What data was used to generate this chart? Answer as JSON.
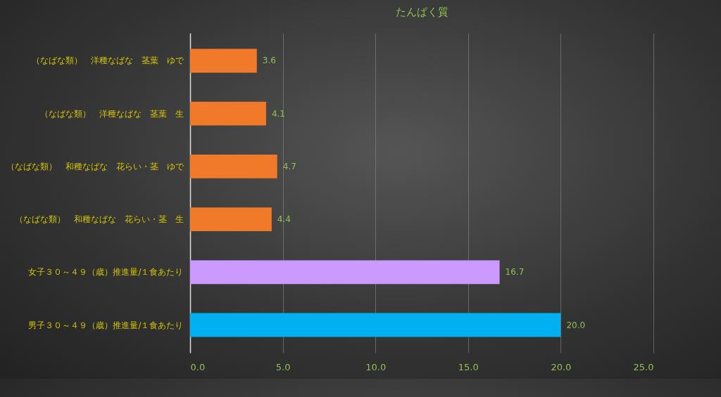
{
  "chart_data": {
    "type": "bar",
    "orientation": "horizontal",
    "title": "たんぱく質",
    "categories": [
      "（なばな類）　洋種なばな　茎葉　ゆで",
      "（なばな類）　洋種なばな　茎葉　生",
      "（なばな類）　和種なばな　花らい・茎　ゆで",
      "（なばな類）　和種なばな　花らい・茎　生",
      "女子３０～４９（歳）推進量/１食あたり",
      "男子３０～４９（歳）推進量/１食あたり"
    ],
    "values": [
      3.6,
      4.1,
      4.7,
      4.4,
      16.7,
      20.0
    ],
    "colors": [
      "#f07a2a",
      "#f07a2a",
      "#f07a2a",
      "#f07a2a",
      "#cc99ff",
      "#00b0f0"
    ],
    "data_labels": true,
    "value_labels": [
      "3.6",
      "4.1",
      "4.7",
      "4.4",
      "16.7",
      "20.0"
    ],
    "xlim": [
      0,
      25
    ],
    "xticks": [
      {
        "value": 0,
        "label": "0.0"
      },
      {
        "value": 5,
        "label": "5.0"
      },
      {
        "value": 10,
        "label": "10.0"
      },
      {
        "value": 15,
        "label": "15.0"
      },
      {
        "value": 20,
        "label": "20.0"
      },
      {
        "value": 25,
        "label": "25.0"
      }
    ],
    "grid": "x"
  }
}
